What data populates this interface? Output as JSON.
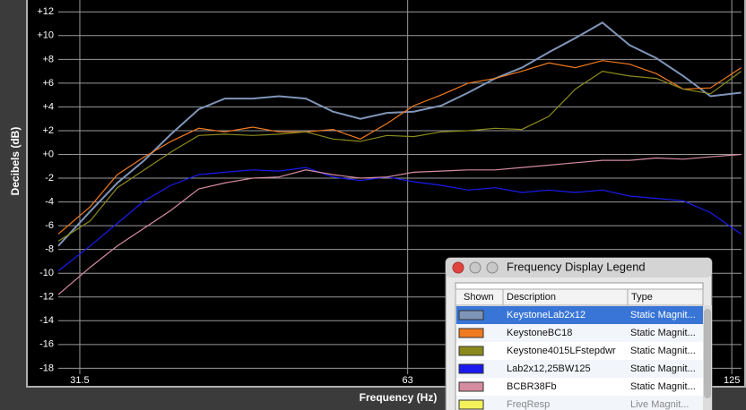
{
  "chart_data": {
    "type": "line",
    "x_label": "Frequency (Hz)",
    "y_label": "Decibels (dB)",
    "xscale": "log",
    "grid": true,
    "xlim": [
      30.1,
      127.6
    ],
    "ylim": [
      -18.5,
      13
    ],
    "xticks": [
      31.5,
      63,
      125
    ],
    "yticks": [
      {
        "value": 12,
        "label": "+12"
      },
      {
        "value": 10,
        "label": "+10"
      },
      {
        "value": 8,
        "label": "+8"
      },
      {
        "value": 6,
        "label": "+6"
      },
      {
        "value": 4,
        "label": "+4"
      },
      {
        "value": 2,
        "label": "+2"
      },
      {
        "value": 0,
        "label": "+0"
      },
      -2,
      -4,
      -6,
      -8,
      -10,
      -12,
      -14,
      -16,
      -18
    ],
    "x": [
      30.1,
      32.2,
      34.1,
      36.1,
      38.2,
      40.5,
      42.8,
      45.4,
      48.0,
      50.8,
      53.8,
      57.0,
      60.3,
      63.8,
      67.6,
      71.6,
      75.8,
      80.2,
      84.9,
      89.8,
      95.1,
      100.7,
      106.6,
      112.8,
      119.5,
      127.5
    ],
    "series": [
      {
        "name": "KeystoneLab2x12",
        "color": "#7f95b8",
        "values": [
          -7.7,
          -4.8,
          -2.4,
          -0.5,
          1.7,
          3.8,
          4.7,
          4.7,
          4.9,
          4.7,
          3.6,
          3.0,
          3.5,
          3.6,
          4.1,
          5.2,
          6.4,
          7.3,
          8.6,
          9.8,
          11.1,
          9.2,
          8.1,
          6.6,
          4.9,
          5.2
        ]
      },
      {
        "name": "KeystoneBC18",
        "color": "#f07a20",
        "values": [
          -6.7,
          -4.4,
          -1.7,
          -0.2,
          1.1,
          2.2,
          1.9,
          2.3,
          1.9,
          1.9,
          2.1,
          1.3,
          2.6,
          4.1,
          5.0,
          6.0,
          6.4,
          7.0,
          7.7,
          7.3,
          7.9,
          7.6,
          6.8,
          5.5,
          5.6,
          7.3
        ]
      },
      {
        "name": "Keystone4015LFstepdwr",
        "color": "#8a8a1c",
        "values": [
          -7.3,
          -5.6,
          -2.8,
          -1.3,
          0.2,
          1.6,
          1.7,
          1.6,
          1.7,
          1.9,
          1.3,
          1.1,
          1.6,
          1.5,
          1.9,
          2.0,
          2.2,
          2.1,
          3.2,
          5.5,
          7.0,
          6.6,
          6.4,
          5.5,
          5.1,
          7.0
        ]
      },
      {
        "name": "Lab2x12,25BW125",
        "color": "#1a1af0",
        "values": [
          -9.8,
          -7.7,
          -5.8,
          -3.9,
          -2.6,
          -1.7,
          -1.5,
          -1.3,
          -1.4,
          -1.1,
          -1.9,
          -2.2,
          -1.9,
          -2.3,
          -2.6,
          -3.0,
          -2.8,
          -3.2,
          -3.0,
          -3.2,
          -3.0,
          -3.5,
          -3.7,
          -3.9,
          -4.9,
          -6.7
        ]
      },
      {
        "name": "BCBR38Fb",
        "color": "#d58ca0",
        "values": [
          -11.8,
          -9.5,
          -7.7,
          -6.2,
          -4.7,
          -2.9,
          -2.4,
          -2.0,
          -1.9,
          -1.3,
          -1.7,
          -2.0,
          -1.9,
          -1.5,
          -1.4,
          -1.3,
          -1.3,
          -1.1,
          -0.9,
          -0.7,
          -0.5,
          -0.5,
          -0.3,
          -0.4,
          -0.2,
          0.0
        ]
      },
      {
        "name": "FreqResp",
        "color": "#f4f25a",
        "values": [
          null,
          null,
          null,
          null,
          null,
          null,
          null,
          null,
          null,
          null,
          null,
          null,
          null,
          null,
          null,
          null,
          null,
          null,
          null,
          null,
          null,
          null,
          null,
          null,
          null,
          null
        ]
      }
    ]
  },
  "legend_window": {
    "title": "Frequency Display Legend",
    "headers": [
      "Shown",
      "Description",
      "Type"
    ],
    "types": [
      "Static Magnit...",
      "Static Magnit...",
      "Static Magnit...",
      "Static Magnit...",
      "Static Magnit...",
      "Live Magnit..."
    ]
  }
}
